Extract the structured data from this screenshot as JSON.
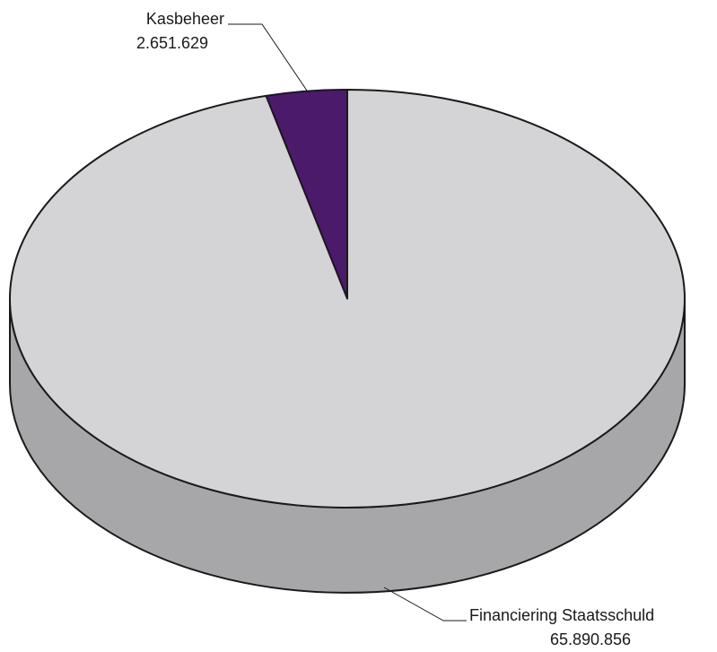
{
  "chart_data": {
    "type": "pie",
    "style": "3d",
    "title": "",
    "slices": [
      {
        "label": "Kasbeheer",
        "value_text": "2.651.629",
        "value": 2651629,
        "color": "#4b1a6b"
      },
      {
        "label": "Financiering Staatsschuld",
        "value_text": "65.890.856",
        "value": 65890856,
        "color": "#d4d4d6"
      }
    ],
    "colors": {
      "side": "#a7a7aa",
      "outline": "#1a1a1a"
    }
  }
}
